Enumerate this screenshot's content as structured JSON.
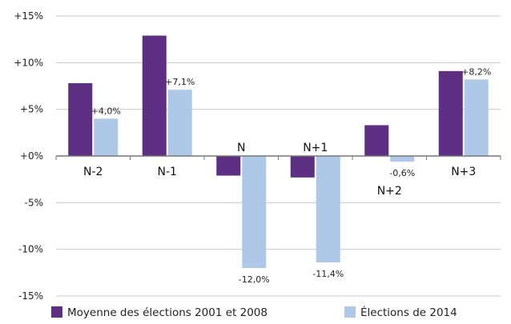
{
  "colors": {
    "series_1": "#5c2f83",
    "series_2": "#aec8e8",
    "grid": "#c8c8c8",
    "axis": "#777777"
  },
  "chart_data": {
    "type": "bar",
    "categories": [
      "N-2",
      "N-1",
      "N",
      "N+1",
      "N+2",
      "N+3"
    ],
    "series": [
      {
        "name": "Moyenne des élections 2001 et 2008",
        "values": [
          7.8,
          12.9,
          -2.1,
          -2.3,
          3.3,
          9.1
        ]
      },
      {
        "name": "Élections de 2014",
        "values": [
          4.0,
          7.1,
          -12.0,
          -11.4,
          -0.6,
          8.2
        ]
      }
    ],
    "data_labels": [
      "+4,0%",
      "+7,1%",
      "-12,0%",
      "-11,4%",
      "-0,6%",
      "+8,2%"
    ],
    "y_ticks": [
      {
        "value": 15,
        "label": "+15%"
      },
      {
        "value": 10,
        "label": "+10%"
      },
      {
        "value": 5,
        "label": "+5%"
      },
      {
        "value": 0,
        "label": "+0%"
      },
      {
        "value": -5,
        "label": "-5%"
      },
      {
        "value": -10,
        "label": "-10%"
      },
      {
        "value": -15,
        "label": "-15%"
      }
    ],
    "ylim": [
      -15,
      15
    ],
    "grid": true,
    "legend_position": "bottom",
    "title": "",
    "xlabel": "",
    "ylabel": ""
  }
}
